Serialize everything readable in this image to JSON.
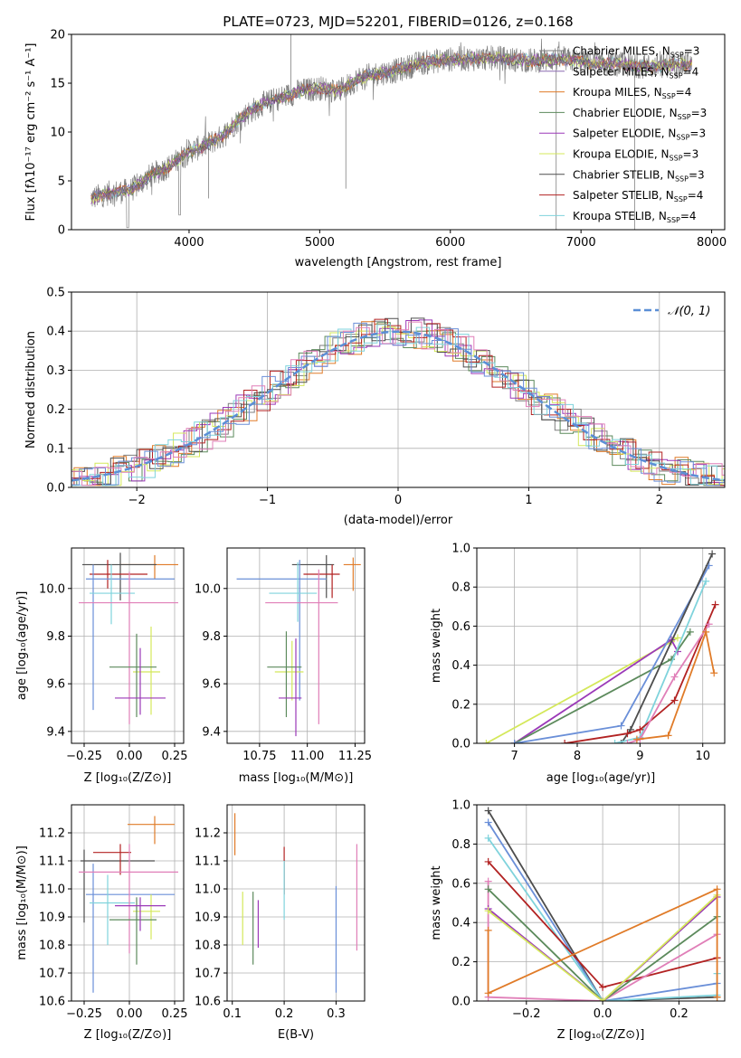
{
  "colors": {
    "c_miles": "#7f7f7f",
    "s_miles": "#8c6bb1",
    "k_miles": "#e07b28",
    "c_elodie": "#5c8a5c",
    "s_elodie": "#9b39b8",
    "k_elodie": "#d4e85a",
    "c_stelib": "#4d4d4d",
    "s_stelib": "#b22222",
    "k_stelib": "#7fd3dc",
    "blue": "#6a8fd8",
    "pink": "#e07fb8",
    "normal": "#5b8fd6"
  },
  "chart_data": [
    {
      "id": "spectrum",
      "type": "line",
      "title": "PLATE=0723, MJD=52201, FIBERID=0126, z=0.168",
      "xlabel": "wavelength [Angstrom, rest frame]",
      "ylabel": "Flux [fλ10⁻¹⁷ erg cm⁻² s⁻¹ A⁻¹]",
      "xlim": [
        3100,
        8100
      ],
      "ylim": [
        0,
        20
      ],
      "xticks": [
        "4000",
        "5000",
        "6000",
        "7000",
        "8000"
      ],
      "yticks": [
        "0",
        "5",
        "10",
        "15",
        "20"
      ],
      "continuum": {
        "x": [
          3250,
          3400,
          3550,
          3700,
          3850,
          4000,
          4100,
          4250,
          4400,
          4550,
          4700,
          4850,
          5000,
          5150,
          5300,
          5450,
          5600,
          5750,
          5900,
          6050,
          6200,
          6350,
          6500,
          6650,
          6800,
          6950,
          7100,
          7250,
          7400,
          7550,
          7700,
          7850
        ],
        "y": [
          3.2,
          3.8,
          4.0,
          5.5,
          6.5,
          8.0,
          8.5,
          9.5,
          11.5,
          12.8,
          13.5,
          14.2,
          14.5,
          14.2,
          15.5,
          16.0,
          16.3,
          17.0,
          17.3,
          17.5,
          17.5,
          17.6,
          17.4,
          17.3,
          17.5,
          17.3,
          17.0,
          17.0,
          16.8,
          16.7,
          16.9,
          17.0
        ]
      },
      "legend": [
        {
          "label": "Chabrier MILES, N",
          "sub": "SSP",
          "eq": "=3",
          "color_key": "c_miles"
        },
        {
          "label": "Salpeter MILES, N",
          "sub": "SSP",
          "eq": "=4",
          "color_key": "s_miles"
        },
        {
          "label": "Kroupa MILES, N",
          "sub": "SSP",
          "eq": "=4",
          "color_key": "k_miles"
        },
        {
          "label": "Chabrier ELODIE, N",
          "sub": "SSP",
          "eq": "=3",
          "color_key": "c_elodie"
        },
        {
          "label": "Salpeter ELODIE, N",
          "sub": "SSP",
          "eq": "=3",
          "color_key": "s_elodie"
        },
        {
          "label": "Kroupa ELODIE, N",
          "sub": "SSP",
          "eq": "=3",
          "color_key": "k_elodie"
        },
        {
          "label": "Chabrier STELIB, N",
          "sub": "SSP",
          "eq": "=3",
          "color_key": "c_stelib"
        },
        {
          "label": "Salpeter STELIB, N",
          "sub": "SSP",
          "eq": "=4",
          "color_key": "s_stelib"
        },
        {
          "label": "Kroupa STELIB, N",
          "sub": "SSP",
          "eq": "=4",
          "color_key": "k_stelib"
        }
      ]
    },
    {
      "id": "residuals",
      "type": "histogram",
      "xlabel": "(data-model)/error",
      "ylabel": "Normed distribution",
      "xlim": [
        -2.5,
        2.5
      ],
      "ylim": [
        0,
        0.5
      ],
      "xticks": [
        "−2",
        "−1",
        "0",
        "1",
        "2"
      ],
      "yticks": [
        "0.0",
        "0.1",
        "0.2",
        "0.3",
        "0.4",
        "0.5"
      ],
      "legend": "𝒩(0, 1)",
      "bin_width": 0.1
    },
    {
      "id": "age_vs_Z",
      "type": "errorbar",
      "xlabel": "Z [log₁₀(Z/Z⊙)]",
      "ylabel": "age  [log₁₀(age/yr)]",
      "xlim": [
        -0.32,
        0.3
      ],
      "ylim": [
        9.35,
        10.17
      ],
      "xticks": [
        "−0.25",
        "0.00",
        "0.25"
      ],
      "xtick_values": [
        -0.25,
        0,
        0.25
      ],
      "yticks": [
        "9.4",
        "9.6",
        "9.8",
        "10.0"
      ],
      "ytick_values": [
        9.4,
        9.6,
        9.8,
        10.0
      ],
      "points": [
        {
          "x": 0.14,
          "xlo": -0.05,
          "xhi": 0.27,
          "y": 10.1,
          "ylo": 10.04,
          "yhi": 10.14,
          "c": "k_miles"
        },
        {
          "x": -0.05,
          "xlo": -0.26,
          "xhi": 0.15,
          "y": 10.1,
          "ylo": 9.95,
          "yhi": 10.15,
          "c": "c_stelib"
        },
        {
          "x": -0.12,
          "xlo": -0.22,
          "xhi": 0.1,
          "y": 10.06,
          "ylo": 10.0,
          "yhi": 10.12,
          "c": "s_stelib"
        },
        {
          "x": -0.2,
          "xlo": -0.24,
          "xhi": 0.25,
          "y": 10.04,
          "ylo": 9.49,
          "yhi": 10.1,
          "c": "blue"
        },
        {
          "x": -0.1,
          "xlo": -0.22,
          "xhi": 0.03,
          "y": 9.98,
          "ylo": 9.85,
          "yhi": 10.1,
          "c": "k_stelib"
        },
        {
          "x": 0.0,
          "xlo": -0.28,
          "xhi": 0.27,
          "y": 9.94,
          "ylo": 9.43,
          "yhi": 10.07,
          "c": "pink"
        },
        {
          "x": 0.12,
          "xlo": 0.02,
          "xhi": 0.17,
          "y": 9.65,
          "ylo": 9.47,
          "yhi": 9.84,
          "c": "k_elodie"
        },
        {
          "x": 0.04,
          "xlo": -0.11,
          "xhi": 0.15,
          "y": 9.67,
          "ylo": 9.46,
          "yhi": 9.81,
          "c": "c_elodie"
        },
        {
          "x": 0.06,
          "xlo": -0.08,
          "xhi": 0.2,
          "y": 9.54,
          "ylo": 9.47,
          "yhi": 9.75,
          "c": "s_elodie"
        }
      ]
    },
    {
      "id": "age_vs_mass",
      "type": "errorbar",
      "xlabel": "mass [log₁₀(M/M⊙)]",
      "ylabel": "",
      "xlim": [
        10.58,
        11.3
      ],
      "ylim": [
        9.35,
        10.17
      ],
      "xticks": [
        "10.75",
        "11.00",
        "11.25"
      ],
      "xtick_values": [
        10.75,
        11.0,
        11.25
      ],
      "yticks": [
        "9.4",
        "9.6",
        "9.8",
        "10.0"
      ],
      "ytick_values": [
        9.4,
        9.6,
        9.8,
        10.0
      ],
      "points": [
        {
          "x": 11.24,
          "xlo": 11.19,
          "xhi": 11.28,
          "y": 10.1,
          "ylo": 9.99,
          "yhi": 10.13,
          "c": "k_miles"
        },
        {
          "x": 11.1,
          "xlo": 10.92,
          "xhi": 11.14,
          "y": 10.1,
          "ylo": 9.96,
          "yhi": 10.14,
          "c": "c_stelib"
        },
        {
          "x": 11.13,
          "xlo": 10.98,
          "xhi": 11.17,
          "y": 10.06,
          "ylo": 9.96,
          "yhi": 10.1,
          "c": "s_stelib"
        },
        {
          "x": 10.96,
          "xlo": 10.63,
          "xhi": 11.1,
          "y": 10.04,
          "ylo": 9.53,
          "yhi": 10.12,
          "c": "blue"
        },
        {
          "x": 10.95,
          "xlo": 10.8,
          "xhi": 11.05,
          "y": 9.98,
          "ylo": 9.86,
          "yhi": 10.11,
          "c": "k_stelib"
        },
        {
          "x": 11.06,
          "xlo": 10.78,
          "xhi": 11.16,
          "y": 9.94,
          "ylo": 9.43,
          "yhi": 10.08,
          "c": "pink"
        },
        {
          "x": 10.92,
          "xlo": 10.83,
          "xhi": 10.98,
          "y": 9.65,
          "ylo": 9.53,
          "yhi": 9.78,
          "c": "k_elodie"
        },
        {
          "x": 10.89,
          "xlo": 10.79,
          "xhi": 10.97,
          "y": 9.67,
          "ylo": 9.46,
          "yhi": 9.82,
          "c": "c_elodie"
        },
        {
          "x": 10.94,
          "xlo": 10.85,
          "xhi": 10.97,
          "y": 9.54,
          "ylo": 9.38,
          "yhi": 9.79,
          "c": "s_elodie"
        }
      ]
    },
    {
      "id": "mass_weight_vs_age",
      "type": "line",
      "xlabel": "age  [log₁₀(age/yr)]",
      "ylabel": "mass weight",
      "xlim": [
        6.4,
        10.35
      ],
      "ylim": [
        0,
        1.0
      ],
      "xticks": [
        "7",
        "8",
        "9",
        "10"
      ],
      "xtick_values": [
        7,
        8,
        9,
        10
      ],
      "yticks": [
        "0.0",
        "0.2",
        "0.4",
        "0.6",
        "0.8",
        "1.0"
      ],
      "ytick_values": [
        0,
        0.2,
        0.4,
        0.6,
        0.8,
        1.0
      ],
      "series": [
        {
          "c": "k_elodie",
          "x": [
            6.55,
            9.5,
            9.6
          ],
          "y": [
            0.0,
            0.52,
            0.54
          ]
        },
        {
          "c": "s_elodie",
          "x": [
            7.0,
            9.5,
            9.6
          ],
          "y": [
            0.0,
            0.53,
            0.47
          ]
        },
        {
          "c": "c_elodie",
          "x": [
            7.0,
            9.5,
            9.8
          ],
          "y": [
            0.0,
            0.43,
            0.57
          ]
        },
        {
          "c": "blue",
          "x": [
            7.0,
            8.7,
            10.1
          ],
          "y": [
            0.0,
            0.09,
            0.91
          ]
        },
        {
          "c": "c_stelib",
          "x": [
            8.7,
            8.85,
            10.15
          ],
          "y": [
            0.0,
            0.07,
            0.97
          ]
        },
        {
          "c": "k_stelib",
          "x": [
            8.6,
            9.0,
            10.05
          ],
          "y": [
            0.0,
            0.03,
            0.83
          ]
        },
        {
          "c": "s_stelib",
          "x": [
            7.8,
            8.8,
            9.0,
            9.55,
            10.2
          ],
          "y": [
            0.0,
            0.05,
            0.07,
            0.22,
            0.71
          ]
        },
        {
          "c": "pink",
          "x": [
            8.8,
            9.0,
            9.55,
            10.1
          ],
          "y": [
            0.0,
            0.02,
            0.34,
            0.61
          ]
        },
        {
          "c": "k_miles",
          "x": [
            8.95,
            9.45,
            10.05,
            10.18
          ],
          "y": [
            0.02,
            0.04,
            0.57,
            0.36
          ]
        }
      ]
    },
    {
      "id": "mass_vs_Z",
      "type": "errorbar",
      "xlabel": "Z [log₁₀(Z/Z⊙)]",
      "ylabel": "mass [log₁₀(M/M⊙)]",
      "xlim": [
        -0.32,
        0.3
      ],
      "ylim": [
        10.6,
        11.3
      ],
      "xticks": [
        "−0.25",
        "0.00",
        "0.25"
      ],
      "xtick_values": [
        -0.25,
        0,
        0.25
      ],
      "yticks": [
        "10.6",
        "10.7",
        "10.8",
        "10.9",
        "11.0",
        "11.1",
        "11.2"
      ],
      "ytick_values": [
        10.6,
        10.7,
        10.8,
        10.9,
        11.0,
        11.1,
        11.2
      ],
      "points": [
        {
          "x": 0.14,
          "xlo": -0.01,
          "xhi": 0.25,
          "y": 11.23,
          "ylo": 11.16,
          "yhi": 11.26,
          "c": "k_miles"
        },
        {
          "x": -0.25,
          "xlo": -0.27,
          "xhi": 0.14,
          "y": 11.1,
          "ylo": 10.88,
          "yhi": 11.14,
          "c": "c_stelib"
        },
        {
          "x": -0.05,
          "xlo": -0.2,
          "xhi": 0.01,
          "y": 11.13,
          "ylo": 11.05,
          "yhi": 11.16,
          "c": "s_stelib"
        },
        {
          "x": -0.2,
          "xlo": -0.24,
          "xhi": 0.25,
          "y": 10.98,
          "ylo": 10.63,
          "yhi": 11.09,
          "c": "blue"
        },
        {
          "x": -0.12,
          "xlo": -0.22,
          "xhi": 0.03,
          "y": 10.95,
          "ylo": 10.8,
          "yhi": 11.05,
          "c": "k_stelib"
        },
        {
          "x": 0.0,
          "xlo": -0.28,
          "xhi": 0.27,
          "y": 11.06,
          "ylo": 10.77,
          "yhi": 11.16,
          "c": "pink"
        },
        {
          "x": 0.12,
          "xlo": 0.02,
          "xhi": 0.17,
          "y": 10.92,
          "ylo": 10.82,
          "yhi": 10.98,
          "c": "k_elodie"
        },
        {
          "x": 0.04,
          "xlo": -0.11,
          "xhi": 0.15,
          "y": 10.89,
          "ylo": 10.73,
          "yhi": 10.97,
          "c": "c_elodie"
        },
        {
          "x": 0.06,
          "xlo": -0.08,
          "xhi": 0.2,
          "y": 10.94,
          "ylo": 10.85,
          "yhi": 10.97,
          "c": "s_elodie"
        }
      ]
    },
    {
      "id": "mass_vs_ebv",
      "type": "errorbar",
      "xlabel": "E(B-V)",
      "ylabel": "",
      "xlim": [
        0.09,
        0.355
      ],
      "ylim": [
        10.6,
        11.3
      ],
      "xticks": [
        "0.1",
        "0.2",
        "0.3"
      ],
      "xtick_values": [
        0.1,
        0.2,
        0.3
      ],
      "yticks": [
        "10.6",
        "10.7",
        "10.8",
        "10.9",
        "11.0",
        "11.1",
        "11.2"
      ],
      "ytick_values": [
        10.6,
        10.7,
        10.8,
        10.9,
        11.0,
        11.1,
        11.2
      ],
      "points": [
        {
          "x": 0.105,
          "y": 11.23,
          "ylo": 11.12,
          "yhi": 11.27,
          "c": "k_miles"
        },
        {
          "x": 0.12,
          "y": 10.9,
          "ylo": 10.8,
          "yhi": 10.99,
          "c": "k_elodie"
        },
        {
          "x": 0.14,
          "y": 10.88,
          "ylo": 10.73,
          "yhi": 10.99,
          "c": "c_elodie"
        },
        {
          "x": 0.15,
          "y": 10.88,
          "ylo": 10.79,
          "yhi": 10.96,
          "c": "s_elodie"
        },
        {
          "x": 0.2,
          "y": 11.13,
          "ylo": 10.98,
          "yhi": 11.15,
          "c": "s_stelib"
        },
        {
          "x": 0.2,
          "y": 11.0,
          "ylo": 10.89,
          "yhi": 11.1,
          "c": "k_stelib"
        },
        {
          "x": 0.3,
          "y": 10.9,
          "ylo": 10.63,
          "yhi": 11.01,
          "c": "blue"
        },
        {
          "x": 0.34,
          "y": 10.95,
          "ylo": 10.78,
          "yhi": 11.16,
          "c": "pink"
        }
      ]
    },
    {
      "id": "mass_weight_vs_Z",
      "type": "line",
      "xlabel": "Z [log₁₀(Z/Z⊙)]",
      "ylabel": "mass weight",
      "xlim": [
        -0.33,
        0.32
      ],
      "ylim": [
        0,
        1.0
      ],
      "xticks": [
        "−0.2",
        "0.0",
        "0.2"
      ],
      "xtick_values": [
        -0.2,
        0,
        0.2
      ],
      "yticks": [
        "0.0",
        "0.2",
        "0.4",
        "0.6",
        "0.8",
        "1.0"
      ],
      "ytick_values": [
        0,
        0.2,
        0.4,
        0.6,
        0.8,
        1.0
      ],
      "series": [
        {
          "c": "c_stelib",
          "x": [
            -0.3,
            0.0,
            0.3
          ],
          "y": [
            0.97,
            0.0,
            0.02
          ]
        },
        {
          "c": "blue",
          "x": [
            -0.3,
            0.0,
            0.3
          ],
          "y": [
            0.91,
            0.0,
            0.09
          ]
        },
        {
          "c": "k_stelib",
          "x": [
            -0.3,
            0.0,
            0.3,
            0.3
          ],
          "y": [
            0.83,
            0.0,
            0.03,
            0.14
          ]
        },
        {
          "c": "s_stelib",
          "x": [
            -0.3,
            0.0,
            0.3
          ],
          "y": [
            0.71,
            0.07,
            0.22
          ]
        },
        {
          "c": "pink",
          "x": [
            -0.3,
            -0.3,
            0.0,
            0.3
          ],
          "y": [
            0.61,
            0.02,
            0.0,
            0.34
          ]
        },
        {
          "c": "c_elodie",
          "x": [
            -0.3,
            0.0,
            0.3
          ],
          "y": [
            0.57,
            0.0,
            0.43
          ]
        },
        {
          "c": "s_elodie",
          "x": [
            -0.3,
            0.0,
            0.3
          ],
          "y": [
            0.47,
            0.0,
            0.53
          ]
        },
        {
          "c": "k_elodie",
          "x": [
            -0.3,
            0.0,
            0.3
          ],
          "y": [
            0.46,
            0.0,
            0.54
          ]
        },
        {
          "c": "k_miles",
          "x": [
            -0.3,
            -0.3,
            0.3,
            0.3
          ],
          "y": [
            0.36,
            0.04,
            0.57,
            0.02
          ]
        }
      ]
    }
  ]
}
